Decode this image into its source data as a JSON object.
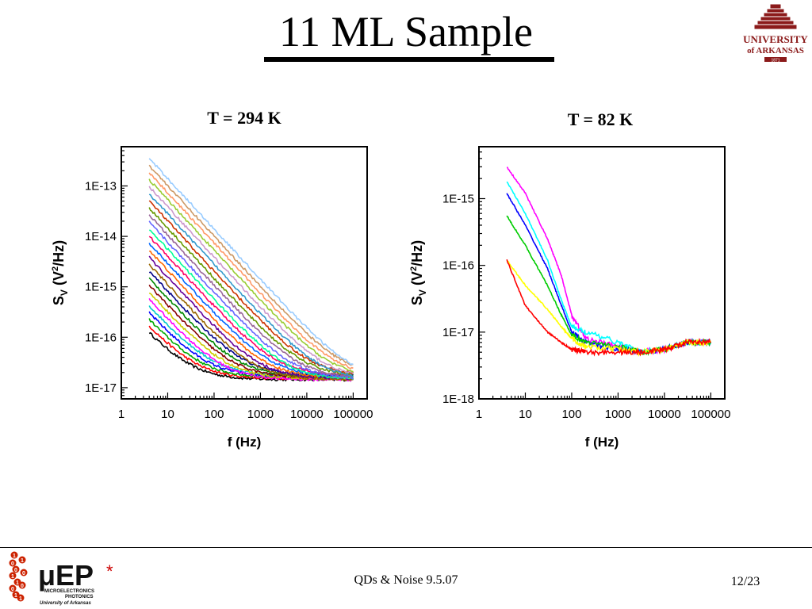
{
  "slide": {
    "title": "11 ML Sample",
    "footer_center": "QDs & Noise 9.5.07",
    "page": "12/23"
  },
  "logos": {
    "university": {
      "lines": [
        "UNIVERSITY",
        "of ARKANSAS"
      ],
      "year": "1871"
    },
    "microep": {
      "letters": "μEP",
      "line1": "MICROELECTRONICS",
      "line2": "PHOTONICS",
      "line3": "University of Arkansas",
      "digits": [
        "1",
        "0",
        "0",
        "1",
        "1",
        "0",
        "1",
        "1",
        "0",
        "0",
        "1"
      ]
    }
  },
  "chart_data": [
    {
      "type": "line",
      "title": "T = 294 K",
      "xlabel": "f (Hz)",
      "ylabel": "S_V (V²/Hz)",
      "x_scale": "log",
      "y_scale": "log",
      "xlim": [
        1,
        200000
      ],
      "ylim": [
        6e-18,
        6e-13
      ],
      "x_ticks": [
        1,
        10,
        100,
        1000,
        10000,
        100000
      ],
      "x_tick_labels": [
        "1",
        "10",
        "100",
        "1000",
        "10000",
        "100000"
      ],
      "y_ticks": [
        1e-17,
        1e-16,
        1e-15,
        1e-14,
        1e-13
      ],
      "y_tick_labels": [
        "1E-17",
        "1E-16",
        "1E-15",
        "1E-14",
        "1E-13"
      ],
      "grid": false,
      "legend": "none",
      "family": {
        "count": 26,
        "f_start": 4,
        "f_end": 100000,
        "floor": 1.6e-17,
        "slope": -1.0,
        "start_low": 1.1e-16,
        "start_high": 3.5e-13,
        "colors": [
          "#000000",
          "#ff0000",
          "#00aa00",
          "#0000ff",
          "#00cccc",
          "#ff00ff",
          "#cccc00",
          "#880000",
          "#008800",
          "#000088",
          "#996600",
          "#660099",
          "#ff6600",
          "#0066ff",
          "#ff0066",
          "#00ff99",
          "#6666ff",
          "#996699",
          "#669900",
          "#cc3300",
          "#3399cc",
          "#cc99cc",
          "#99cc33",
          "#ff9966",
          "#cc9966",
          "#99ccff"
        ]
      }
    },
    {
      "type": "line",
      "title": "T = 82 K",
      "xlabel": "f (Hz)",
      "ylabel": "S_V (V²/Hz)",
      "x_scale": "log",
      "y_scale": "log",
      "xlim": [
        1,
        200000
      ],
      "ylim": [
        1e-18,
        6e-15
      ],
      "x_ticks": [
        1,
        10,
        100,
        1000,
        10000,
        100000
      ],
      "x_tick_labels": [
        "1",
        "10",
        "100",
        "1000",
        "10000",
        "100000"
      ],
      "y_ticks": [
        1e-18,
        1e-17,
        1e-16,
        1e-15
      ],
      "y_tick_labels": [
        "1E-18",
        "1E-17",
        "1E-16",
        "1E-15"
      ],
      "grid": false,
      "legend": "none",
      "series": [
        {
          "color": "#ff00ff",
          "x": [
            4,
            10,
            30,
            60,
            100,
            200,
            1000,
            3000,
            10000,
            30000,
            100000
          ],
          "y": [
            3e-15,
            1.2e-15,
            2.5e-16,
            7e-17,
            1.8e-17,
            8e-18,
            6e-18,
            5e-18,
            5.5e-18,
            7e-18,
            7e-18
          ]
        },
        {
          "color": "#00ffff",
          "x": [
            4,
            10,
            30,
            60,
            100,
            200,
            1000,
            3000,
            10000,
            30000,
            100000
          ],
          "y": [
            1.8e-15,
            6e-16,
            1.2e-16,
            3e-17,
            1.2e-17,
            1e-17,
            7e-18,
            5e-18,
            5.5e-18,
            7e-18,
            7e-18
          ]
        },
        {
          "color": "#0000ff",
          "x": [
            4,
            10,
            30,
            60,
            100,
            200,
            1000,
            3000,
            10000,
            30000,
            100000
          ],
          "y": [
            1.2e-15,
            4e-16,
            9e-17,
            2.5e-17,
            1e-17,
            7e-18,
            5.5e-18,
            5e-18,
            5.5e-18,
            7e-18,
            7e-18
          ]
        },
        {
          "color": "#00cc00",
          "x": [
            4,
            10,
            30,
            60,
            100,
            200,
            1000,
            3000,
            10000,
            30000,
            100000
          ],
          "y": [
            5.5e-16,
            2e-16,
            5e-17,
            1.8e-17,
            9e-18,
            7e-18,
            6e-18,
            5e-18,
            5.5e-18,
            7e-18,
            7e-18
          ]
        },
        {
          "color": "#ffff00",
          "x": [
            4,
            10,
            30,
            60,
            100,
            200,
            1000,
            3000,
            10000,
            30000,
            100000
          ],
          "y": [
            1.2e-16,
            5e-17,
            2.2e-17,
            1.2e-17,
            8e-18,
            6e-18,
            5.5e-18,
            5e-18,
            5.5e-18,
            7e-18,
            7e-18
          ]
        },
        {
          "color": "#ff0000",
          "x": [
            4,
            10,
            30,
            60,
            100,
            200,
            1000,
            3000,
            10000,
            30000,
            100000
          ],
          "y": [
            1.2e-16,
            2.5e-17,
            1e-17,
            7e-18,
            5.5e-18,
            5e-18,
            5e-18,
            5e-18,
            5.5e-18,
            7e-18,
            7e-18
          ]
        }
      ]
    }
  ]
}
